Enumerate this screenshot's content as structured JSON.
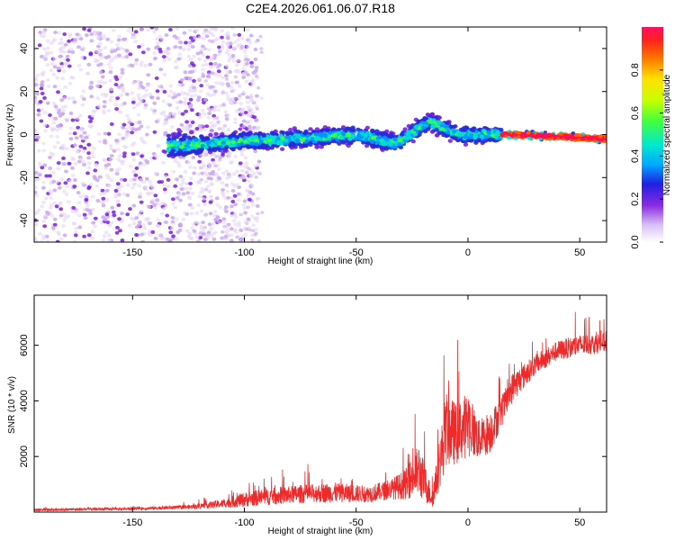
{
  "figure": {
    "title": "C2E4.2026.061.06.07.R18"
  },
  "colors": {
    "signal_line": "#ee2a2a",
    "dot_colormap": [
      "#e6d6f7",
      "#c9a8ee",
      "#7b1fe0",
      "#2a2ad8",
      "#0096ff",
      "#00e0d0",
      "#40ff40",
      "#ffe000",
      "#ff6000",
      "#ff1050"
    ]
  },
  "chart_data": [
    {
      "id": "spectrogram",
      "type": "heatmap",
      "title": "C2E4.2026.061.06.07.R18",
      "xlabel": "Height of straight line (km)",
      "ylabel": "Frequency (Hz)",
      "xlim": [
        -194,
        62
      ],
      "ylim": [
        -50,
        50
      ],
      "xticks": [
        -150,
        -100,
        -50,
        0,
        50
      ],
      "yticks": [
        -40,
        -20,
        0,
        20,
        40
      ],
      "colorbar": {
        "label": "Normalized spectral amplitude",
        "range": [
          0,
          1
        ],
        "ticks": [
          "0.0",
          "0.2",
          "0.4",
          "0.6",
          "0.8"
        ]
      },
      "band_centre_hz": [
        {
          "x": -125,
          "y": -5
        },
        {
          "x": -100,
          "y": -3
        },
        {
          "x": -75,
          "y": -2
        },
        {
          "x": -50,
          "y": 0
        },
        {
          "x": -32,
          "y": -4
        },
        {
          "x": -17,
          "y": 6
        },
        {
          "x": -5,
          "y": 0
        },
        {
          "x": 20,
          "y": 0
        },
        {
          "x": 62,
          "y": -2
        }
      ]
    },
    {
      "id": "snr",
      "type": "line",
      "xlabel": "Height of straight line (km)",
      "ylabel": "SNR (10 * v/v)",
      "xlim": [
        -194,
        62
      ],
      "ylim": [
        0,
        7800
      ],
      "xticks": [
        -150,
        -100,
        -50,
        0,
        50
      ],
      "yticks": [
        2000,
        4000,
        6000
      ],
      "envelope": {
        "x": [
          -194,
          -150,
          -125,
          -110,
          -100,
          -90,
          -75,
          -60,
          -45,
          -35,
          -28,
          -22,
          -16,
          -13,
          -10,
          -5,
          0,
          5,
          10,
          15,
          20,
          30,
          40,
          50,
          62
        ],
        "mid": [
          80,
          120,
          180,
          300,
          450,
          550,
          650,
          700,
          650,
          800,
          1000,
          1500,
          500,
          1500,
          3000,
          2800,
          3200,
          2600,
          2900,
          3600,
          4500,
          5300,
          5800,
          6000,
          6100
        ],
        "amp": [
          80,
          80,
          120,
          250,
          450,
          500,
          550,
          600,
          500,
          600,
          900,
          1600,
          600,
          1300,
          2300,
          1800,
          2000,
          1200,
          1300,
          900,
          900,
          600,
          600,
          650,
          600
        ]
      }
    }
  ]
}
